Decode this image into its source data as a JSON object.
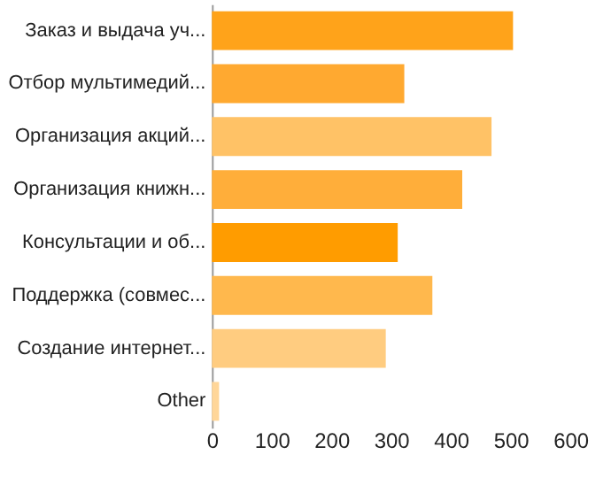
{
  "chart_data": {
    "type": "bar",
    "orientation": "horizontal",
    "categories": [
      "Заказ и выдача уч...",
      "Отбор мультимедий...",
      "Организация акций...",
      "Организация книжн...",
      "Консультации и об...",
      "Поддержка (совмес...",
      "Создание интернет...",
      "Other"
    ],
    "values": [
      504,
      322,
      468,
      419,
      311,
      369,
      291,
      12
    ],
    "colors": [
      "#ffa31a",
      "#ffa930",
      "#ffc266",
      "#ffae3a",
      "#ff9c00",
      "#ffb84d",
      "#ffcc80",
      "#ffd699"
    ],
    "xlim": [
      0,
      600
    ],
    "xticks": [
      0,
      100,
      200,
      300,
      400,
      500,
      600
    ],
    "grid": false
  }
}
